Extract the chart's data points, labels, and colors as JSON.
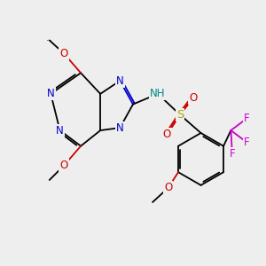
{
  "bg_color": "#eeeeee",
  "atom_colors": {
    "C": "#000000",
    "N": "#0000cc",
    "O": "#cc0000",
    "S": "#aaaa00",
    "F": "#cc00cc",
    "H": "#008888"
  },
  "lw": 1.3,
  "fs": 8.5,
  "fs_small": 7.0
}
